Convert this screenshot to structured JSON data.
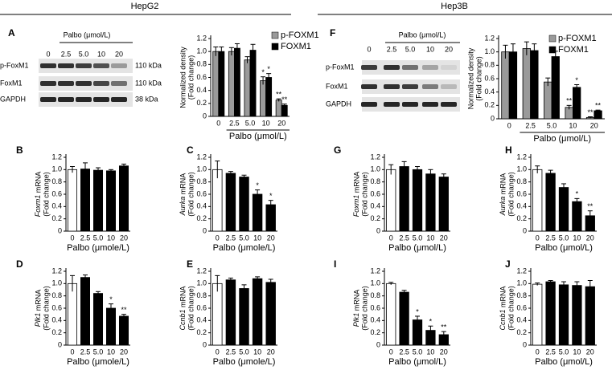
{
  "header": {
    "left": "HepG2",
    "right": "Hep3B"
  },
  "blots": [
    {
      "treatment": "Palbo (μmol/L)",
      "lanes": [
        "0",
        "2.5",
        "5.0",
        "10",
        "20"
      ],
      "rows": [
        "p-FoxM1",
        "FoxM1",
        "GAPDH"
      ],
      "sizes": [
        "110 kDa",
        "110 kDa",
        "38 kDa"
      ]
    },
    {
      "treatment": "Palbo (μmol/L)",
      "lanes": [
        "0",
        "2.5",
        "5.0",
        "10",
        "20"
      ],
      "rows": [
        "p-FoxM1",
        "FoxM1",
        "GAPDH"
      ]
    }
  ],
  "chart_data": [
    {
      "type": "bar",
      "panel": "A",
      "ylabel": [
        "Normalized density",
        "(Fold change)"
      ],
      "xlabel": "Palbo (μmol/L)",
      "categories": [
        "0",
        "2.5",
        "5.0",
        "10",
        "20"
      ],
      "series": [
        {
          "name": "p-FOXM1",
          "color": "#9a9a9a",
          "values": [
            1.0,
            1.0,
            0.87,
            0.55,
            0.25
          ],
          "errors": [
            0.07,
            0.06,
            0.05,
            0.06,
            0.02
          ],
          "significance": [
            null,
            null,
            null,
            "*",
            "**"
          ]
        },
        {
          "name": "FOXM1",
          "color": "#000000",
          "values": [
            1.0,
            1.05,
            1.02,
            0.6,
            0.17
          ],
          "errors": [
            0.07,
            0.07,
            0.09,
            0.06,
            0.02
          ],
          "significance": [
            null,
            null,
            null,
            "*",
            "**"
          ]
        }
      ],
      "ylim": [
        0,
        1.2
      ],
      "yticks": [
        0,
        0.2,
        0.4,
        0.6,
        0.8,
        {
          "value": 1,
          "label": "1.0"
        },
        1.2
      ]
    },
    {
      "type": "bar",
      "panel": "B",
      "ylabel": [
        "Foxm1 mRNA",
        "(Fold change)"
      ],
      "xlabel": "Palbo (μmole/L)",
      "categories": [
        "0",
        "2.5",
        "5.0",
        "10",
        "20"
      ],
      "values": [
        1.0,
        1.01,
        0.99,
        0.98,
        1.06
      ],
      "errors": [
        0.05,
        0.1,
        0.04,
        0.02,
        0.03
      ],
      "colors": [
        "#ffffff",
        "#000000",
        "#000000",
        "#000000",
        "#000000"
      ],
      "significance": [
        null,
        null,
        null,
        null,
        null
      ],
      "ylim": [
        0,
        1.2
      ],
      "yticks": [
        0,
        0.2,
        0.4,
        0.6,
        0.8,
        {
          "value": 1,
          "label": "1.0"
        },
        1.2
      ]
    },
    {
      "type": "bar",
      "panel": "C",
      "ylabel": [
        "Aurka mRNA",
        "(Fold change)"
      ],
      "xlabel": "Palbo (μmole/L)",
      "categories": [
        "0",
        "2.5",
        "5.0",
        "10",
        "20"
      ],
      "values": [
        1.0,
        0.94,
        0.88,
        0.6,
        0.43
      ],
      "errors": [
        0.14,
        0.03,
        0.03,
        0.07,
        0.07
      ],
      "colors": [
        "#ffffff",
        "#000000",
        "#000000",
        "#000000",
        "#000000"
      ],
      "significance": [
        null,
        null,
        null,
        "*",
        "*"
      ],
      "ylim": [
        0,
        1.2
      ],
      "yticks": [
        0,
        0.2,
        0.4,
        0.6,
        0.8,
        {
          "value": 1,
          "label": "1.0"
        },
        1.2
      ]
    },
    {
      "type": "bar",
      "panel": "D",
      "ylabel": [
        "Plk1 mRNA",
        "(Fold change)"
      ],
      "xlabel": "Palbo (μmole/L)",
      "categories": [
        "0",
        "2.5",
        "5.0",
        "10",
        "20"
      ],
      "values": [
        1.0,
        1.1,
        0.84,
        0.6,
        0.47
      ],
      "errors": [
        0.13,
        0.04,
        0.03,
        0.07,
        0.03
      ],
      "colors": [
        "#ffffff",
        "#000000",
        "#000000",
        "#000000",
        "#000000"
      ],
      "significance": [
        null,
        null,
        null,
        "*",
        "**"
      ],
      "ylim": [
        0,
        1.2
      ],
      "yticks": [
        0,
        0.2,
        0.4,
        0.6,
        0.8,
        {
          "value": 1,
          "label": "1.0"
        },
        1.2
      ]
    },
    {
      "type": "bar",
      "panel": "E",
      "ylabel": [
        "Ccnb1 mRNA",
        "(Fold change)"
      ],
      "xlabel": "Palbo (μmole/L)",
      "categories": [
        "0",
        "2.5",
        "5.0",
        "10",
        "20"
      ],
      "values": [
        1.0,
        1.06,
        0.92,
        1.08,
        1.02
      ],
      "errors": [
        0.13,
        0.03,
        0.06,
        0.03,
        0.05
      ],
      "colors": [
        "#ffffff",
        "#000000",
        "#000000",
        "#000000",
        "#000000"
      ],
      "significance": [
        null,
        null,
        null,
        null,
        null
      ],
      "ylim": [
        0,
        1.2
      ],
      "yticks": [
        0,
        0.2,
        0.4,
        0.6,
        0.8,
        {
          "value": 1,
          "label": "1.0"
        },
        1.2
      ]
    },
    {
      "type": "bar",
      "panel": "F",
      "ylabel": [
        "Normalized density",
        "(Fold change)"
      ],
      "xlabel": "Palbo (μmol/L)",
      "categories": [
        "0",
        "2.5",
        "5.0",
        "10",
        "20"
      ],
      "series": [
        {
          "name": "p-FOXM1",
          "color": "#9a9a9a",
          "values": [
            1.0,
            1.05,
            0.55,
            0.17,
            0.02
          ],
          "errors": [
            0.1,
            0.1,
            0.06,
            0.03,
            0.01
          ],
          "significance": [
            null,
            null,
            null,
            "**",
            "**"
          ]
        },
        {
          "name": "FOXM1",
          "color": "#000000",
          "values": [
            1.0,
            1.02,
            0.93,
            0.47,
            0.12
          ],
          "errors": [
            0.12,
            0.1,
            0.08,
            0.04,
            0.01
          ],
          "significance": [
            null,
            null,
            null,
            "*",
            "**"
          ]
        }
      ],
      "ylim": [
        0,
        1.2
      ],
      "yticks": [
        0,
        0.2,
        0.4,
        0.6,
        0.8,
        {
          "value": 1,
          "label": "1.0"
        },
        1.2
      ]
    },
    {
      "type": "bar",
      "panel": "G",
      "ylabel": [
        "Foxm1 mRNA",
        "(Fold change)"
      ],
      "xlabel": "Palbo (μmol/L)",
      "categories": [
        "0",
        "2.5",
        "5.0",
        "10",
        "20"
      ],
      "values": [
        1.0,
        1.05,
        1.0,
        0.93,
        0.88
      ],
      "errors": [
        0.08,
        0.08,
        0.05,
        0.07,
        0.05
      ],
      "colors": [
        "#ffffff",
        "#000000",
        "#000000",
        "#000000",
        "#000000"
      ],
      "significance": [
        null,
        null,
        null,
        null,
        null
      ],
      "ylim": [
        0,
        1.2
      ],
      "yticks": [
        0,
        0.2,
        0.4,
        0.6,
        0.8,
        {
          "value": 1,
          "label": "1.0"
        },
        1.2
      ]
    },
    {
      "type": "bar",
      "panel": "H",
      "ylabel": [
        "Aurka mRNA",
        "(Fold change)"
      ],
      "xlabel": "Palbo (μmol/L)",
      "categories": [
        "0",
        "2.5",
        "5.0",
        "10",
        "20"
      ],
      "values": [
        1.0,
        0.94,
        0.71,
        0.48,
        0.25
      ],
      "errors": [
        0.06,
        0.05,
        0.06,
        0.05,
        0.08
      ],
      "colors": [
        "#ffffff",
        "#000000",
        "#000000",
        "#000000",
        "#000000"
      ],
      "significance": [
        null,
        null,
        null,
        "*",
        "**"
      ],
      "ylim": [
        0,
        1.2
      ],
      "yticks": [
        0,
        0.2,
        0.4,
        0.6,
        0.8,
        {
          "value": 1,
          "label": "1.0"
        },
        1.2
      ]
    },
    {
      "type": "bar",
      "panel": "I",
      "ylabel": [
        "Plk1 mRNA",
        "(Fold change)"
      ],
      "xlabel": "Palbo (μmol/L)",
      "categories": [
        "0",
        "2.5",
        "5.0",
        "10",
        "20"
      ],
      "values": [
        1.0,
        0.86,
        0.41,
        0.24,
        0.17
      ],
      "errors": [
        0.02,
        0.03,
        0.06,
        0.07,
        0.05
      ],
      "colors": [
        "#ffffff",
        "#000000",
        "#000000",
        "#000000",
        "#000000"
      ],
      "significance": [
        null,
        null,
        "*",
        "*",
        "**"
      ],
      "ylim": [
        0,
        1.2
      ],
      "yticks": [
        0,
        0.2,
        0.4,
        0.6,
        0.8,
        {
          "value": 1,
          "label": "1.0"
        },
        1.2
      ]
    },
    {
      "type": "bar",
      "panel": "J",
      "ylabel": [
        "Ccnb1 mRNA",
        "(Fold change)"
      ],
      "xlabel": "Palbo (μmol/L)",
      "categories": [
        "0",
        "2.5",
        "5.0",
        "10",
        "20"
      ],
      "values": [
        0.99,
        1.03,
        0.98,
        0.97,
        0.95
      ],
      "errors": [
        0.02,
        0.02,
        0.05,
        0.06,
        0.1
      ],
      "colors": [
        "#ffffff",
        "#000000",
        "#000000",
        "#000000",
        "#000000"
      ],
      "significance": [
        null,
        null,
        null,
        null,
        null
      ],
      "ylim": [
        0,
        1.2
      ],
      "yticks": [
        0,
        0.2,
        0.4,
        0.6,
        0.8,
        {
          "value": 1,
          "label": "1.0"
        },
        1.2
      ]
    }
  ]
}
